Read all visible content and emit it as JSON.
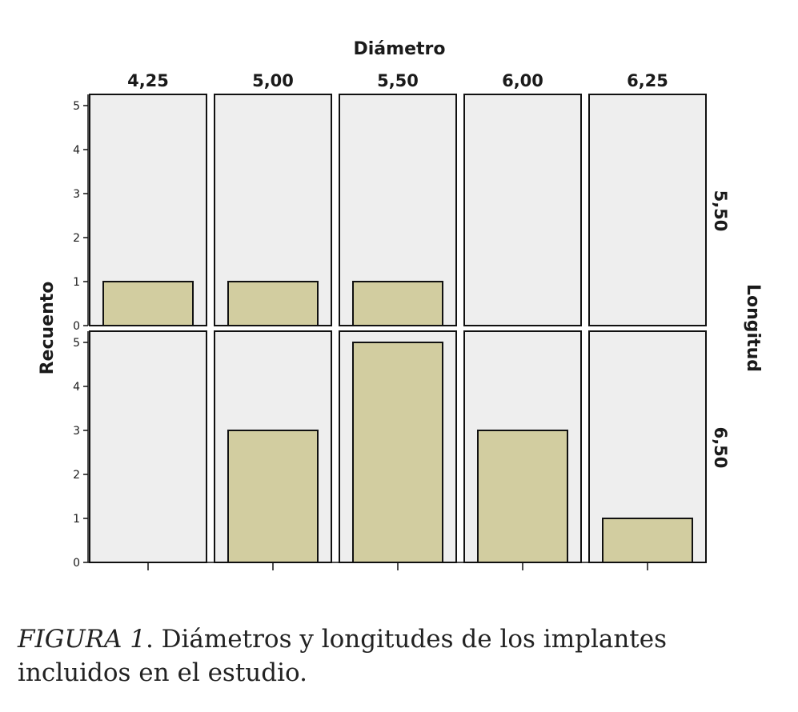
{
  "chart_data": {
    "type": "bar",
    "col_title": "Diámetro",
    "row_title": "Longitud",
    "ylabel": "Recuento",
    "columns": [
      "4,25",
      "5,00",
      "5,50",
      "6,00",
      "6,25"
    ],
    "rows": [
      "5,50",
      "6,50"
    ],
    "ylim": [
      0,
      5
    ],
    "yticks": [
      "0",
      "1",
      "2",
      "3",
      "4",
      "5"
    ],
    "panels": [
      {
        "row": "5,50",
        "values": [
          1,
          1,
          1,
          0,
          0
        ]
      },
      {
        "row": "6,50",
        "values": [
          0,
          3,
          5,
          3,
          1
        ]
      }
    ],
    "grid": false
  },
  "caption": {
    "label": "FIGURA 1",
    "text": ". Diámetros y longitudes de los implantes incluidos en el estudio."
  },
  "colors": {
    "panel_bg": "#eeeeee",
    "bar_fill": "#d2cda0",
    "bar_stroke": "#111111",
    "frame": "#111111"
  }
}
